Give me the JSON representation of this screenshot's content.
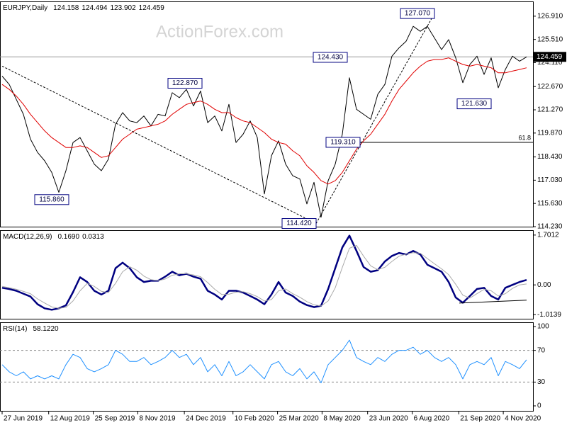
{
  "watermark": "ActionForex.com",
  "chart_data": [
    {
      "type": "line",
      "title": "EURJPY,Daily",
      "readout": [
        124.158,
        124.494,
        123.902,
        124.459
      ],
      "x": [
        0,
        1,
        2,
        3,
        4,
        5,
        6,
        7,
        8,
        9,
        10,
        11,
        12,
        13,
        14,
        15,
        16,
        17,
        18,
        19,
        20,
        21,
        22,
        23,
        24,
        25,
        26,
        27,
        28,
        29,
        30,
        31,
        32,
        33,
        34,
        35,
        36,
        37,
        38,
        39,
        40,
        41,
        42,
        43,
        44,
        45,
        46,
        47,
        48,
        49,
        50,
        51,
        52,
        53,
        54,
        55,
        56,
        57,
        58,
        59,
        60,
        61,
        62,
        63,
        64,
        65,
        66,
        67,
        68,
        69,
        70,
        71,
        72,
        73,
        74
      ],
      "xlim": [
        -0.3,
        74.9
      ],
      "ylim": [
        114.23,
        127.8
      ],
      "yticks": [
        {
          "value": 126.91,
          "label": "126.910"
        },
        {
          "value": 125.51,
          "label": "125.510"
        },
        {
          "value": 124.11,
          "label": "124.110"
        },
        {
          "value": 122.67,
          "label": "122.670"
        },
        {
          "value": 121.27,
          "label": "121.270"
        },
        {
          "value": 119.87,
          "label": "119.870"
        },
        {
          "value": 118.43,
          "label": "118.430"
        },
        {
          "value": 117.03,
          "label": "117.030"
        },
        {
          "value": 115.63,
          "label": "115.630"
        },
        {
          "value": 114.23,
          "label": "114.230"
        }
      ],
      "series": [
        {
          "color": "#000000",
          "width": 1,
          "values": [
            123.3,
            122.8,
            121.9,
            121.0,
            119.5,
            118.7,
            118.2,
            117.5,
            116.3,
            117.6,
            119.3,
            119.6,
            118.8,
            118.0,
            117.6,
            118.3,
            120.4,
            121.1,
            120.6,
            120.5,
            120.9,
            120.3,
            121.0,
            120.9,
            122.3,
            122.0,
            122.5,
            121.5,
            122.4,
            120.5,
            120.9,
            120.0,
            121.6,
            119.3,
            119.8,
            120.6,
            119.6,
            116.2,
            118.5,
            119.4,
            118.0,
            117.3,
            117.1,
            115.6,
            116.9,
            114.8,
            117.0,
            118.0,
            119.8,
            123.2,
            121.3,
            121.0,
            120.7,
            122.2,
            122.8,
            124.5,
            125.0,
            125.4,
            126.3,
            126.0,
            126.3,
            125.6,
            124.9,
            125.5,
            124.4,
            122.9,
            124.0,
            124.5,
            123.4,
            124.4,
            122.6,
            123.7,
            124.5,
            124.2,
            124.459
          ]
        },
        {
          "color": "#e00000",
          "width": 1,
          "values": [
            122.8,
            122.5,
            122.1,
            121.6,
            121.0,
            120.5,
            120.0,
            119.6,
            119.3,
            119.0,
            119.0,
            119.1,
            119.0,
            118.7,
            118.4,
            118.5,
            119.0,
            119.5,
            119.8,
            120.1,
            120.2,
            120.3,
            120.4,
            120.6,
            121.0,
            121.3,
            121.6,
            121.7,
            121.8,
            121.6,
            121.3,
            121.1,
            121.1,
            120.8,
            120.6,
            120.5,
            120.2,
            119.9,
            119.5,
            119.3,
            119.2,
            118.8,
            118.5,
            117.9,
            117.5,
            117.0,
            116.8,
            117.0,
            117.5,
            118.2,
            118.9,
            119.4,
            119.8,
            120.4,
            121.0,
            121.8,
            122.5,
            123.0,
            123.5,
            123.9,
            124.2,
            124.3,
            124.3,
            124.4,
            124.2,
            124.0,
            123.9,
            124.0,
            123.9,
            123.8,
            123.5,
            123.5,
            123.6,
            123.7,
            123.8
          ]
        }
      ],
      "last_price": 124.459,
      "annotations": [
        {
          "x": 61,
          "value": 127.07,
          "label": "127.070"
        },
        {
          "x": 48.7,
          "value": 124.43,
          "label": "124.430"
        },
        {
          "x": 28.2,
          "value": 122.87,
          "label": "122.870"
        },
        {
          "x": 9.4,
          "value": 115.86,
          "label": "115.860"
        },
        {
          "x": 44.3,
          "value": 114.42,
          "label": "114.420"
        },
        {
          "x": 69,
          "value": 121.63,
          "label": "121.630"
        },
        {
          "x": 50.5,
          "value": 119.31,
          "label": "119.310"
        }
      ],
      "fib_level": {
        "x_start": 50.5,
        "value": 119.31,
        "ratio": 61.8
      },
      "trendlines": [
        [
          [
            0,
            123.9
          ],
          [
            44.3,
            114.42
          ]
        ],
        [
          [
            44.3,
            114.42
          ],
          [
            61,
            127.07
          ]
        ]
      ]
    },
    {
      "type": "line",
      "title": "MACD(12,26,9)",
      "readout": [
        {
          "value": 0.169,
          "label": "0.1690"
        },
        0.0313
      ],
      "x": [
        0,
        1,
        2,
        3,
        4,
        5,
        6,
        7,
        8,
        9,
        10,
        11,
        12,
        13,
        14,
        15,
        16,
        17,
        18,
        19,
        20,
        21,
        22,
        23,
        24,
        25,
        26,
        27,
        28,
        29,
        30,
        31,
        32,
        33,
        34,
        35,
        36,
        37,
        38,
        39,
        40,
        41,
        42,
        43,
        44,
        45,
        46,
        47,
        48,
        49,
        50,
        51,
        52,
        53,
        54,
        55,
        56,
        57,
        58,
        59,
        60,
        61,
        62,
        63,
        64,
        65,
        66,
        67,
        68,
        69,
        70,
        71,
        72,
        73,
        74
      ],
      "xlim": [
        -0.3,
        74.9
      ],
      "ylim": [
        -1.156,
        1.867
      ],
      "yticks": [
        1.7012,
        {
          "value": 0,
          "label": "0.00"
        },
        -1.0139
      ],
      "series": [
        {
          "color": "#000080",
          "width": 2.5,
          "values": [
            -0.1,
            -0.14,
            -0.2,
            -0.3,
            -0.4,
            -0.66,
            -0.8,
            -0.85,
            -0.8,
            -0.7,
            -0.25,
            0.26,
            0.1,
            -0.2,
            -0.33,
            -0.2,
            0.57,
            0.76,
            0.57,
            0.26,
            0.1,
            0.14,
            0.14,
            0.28,
            0.45,
            0.33,
            0.38,
            0.28,
            0.21,
            -0.2,
            -0.33,
            -0.5,
            -0.2,
            -0.2,
            -0.26,
            -0.38,
            -0.5,
            -0.66,
            -0.33,
            0.1,
            -0.26,
            -0.38,
            -0.57,
            -0.69,
            -0.76,
            -0.71,
            -0.14,
            0.57,
            1.28,
            1.68,
            1.16,
            0.61,
            0.45,
            0.5,
            0.8,
            0.99,
            1.09,
            1.04,
            1.16,
            1.04,
            0.69,
            0.57,
            0.45,
            0.1,
            -0.43,
            -0.61,
            -0.38,
            -0.14,
            -0.1,
            -0.38,
            -0.5,
            -0.1,
            0,
            0.1,
            0.169
          ]
        },
        {
          "color": "#aaaaaa",
          "width": 1,
          "values": [
            -0.05,
            -0.1,
            -0.15,
            -0.22,
            -0.3,
            -0.48,
            -0.62,
            -0.75,
            -0.8,
            -0.77,
            -0.55,
            -0.2,
            0.05,
            -0.05,
            -0.22,
            -0.26,
            0.05,
            0.45,
            0.62,
            0.5,
            0.3,
            0.18,
            0.14,
            0.2,
            0.33,
            0.38,
            0.38,
            0.34,
            0.28,
            0.08,
            -0.15,
            -0.33,
            -0.32,
            -0.25,
            -0.23,
            -0.3,
            -0.4,
            -0.55,
            -0.5,
            -0.2,
            -0.14,
            -0.3,
            -0.42,
            -0.57,
            -0.68,
            -0.72,
            -0.55,
            -0.1,
            0.6,
            1.25,
            1.35,
            0.98,
            0.65,
            0.52,
            0.6,
            0.8,
            0.98,
            1.05,
            1.1,
            1.08,
            0.9,
            0.72,
            0.55,
            0.35,
            0.02,
            -0.35,
            -0.45,
            -0.3,
            -0.15,
            -0.2,
            -0.38,
            -0.3,
            -0.12,
            0.0,
            0.0313
          ]
        }
      ],
      "trendlines": [
        [
          [
            64.5,
            -0.62
          ],
          [
            74,
            -0.52
          ]
        ]
      ]
    },
    {
      "type": "line",
      "title": "RSI(14)",
      "readout": [
        {
          "value": 58.122,
          "label": "58.1220"
        }
      ],
      "x": [
        0,
        1,
        2,
        3,
        4,
        5,
        6,
        7,
        8,
        9,
        10,
        11,
        12,
        13,
        14,
        15,
        16,
        17,
        18,
        19,
        20,
        21,
        22,
        23,
        24,
        25,
        26,
        27,
        28,
        29,
        30,
        31,
        32,
        33,
        34,
        35,
        36,
        37,
        38,
        39,
        40,
        41,
        42,
        43,
        44,
        45,
        46,
        47,
        48,
        49,
        50,
        51,
        52,
        53,
        54,
        55,
        56,
        57,
        58,
        59,
        60,
        61,
        62,
        63,
        64,
        65,
        66,
        67,
        68,
        69,
        70,
        71,
        72,
        73,
        74
      ],
      "xlim": [
        -0.3,
        74.9
      ],
      "ylim": [
        -6.25,
        105.4
      ],
      "yticks": [
        100,
        70,
        30,
        0
      ],
      "levels": [
        70,
        30
      ],
      "series": [
        {
          "color": "#1e90ff",
          "width": 1,
          "values": [
            52,
            43,
            38,
            43,
            34,
            38,
            34,
            38,
            34,
            52,
            65,
            61,
            47,
            43,
            47,
            52,
            70,
            65,
            56,
            56,
            61,
            52,
            56,
            61,
            70,
            61,
            65,
            52,
            61,
            43,
            52,
            38,
            56,
            38,
            43,
            52,
            43,
            34,
            52,
            56,
            43,
            38,
            47,
            34,
            43,
            29,
            52,
            61,
            70,
            83,
            61,
            56,
            52,
            61,
            56,
            65,
            70,
            70,
            74,
            65,
            70,
            61,
            56,
            61,
            52,
            34,
            52,
            56,
            52,
            61,
            38,
            56,
            52,
            47,
            58.122
          ]
        }
      ],
      "xticks": [
        {
          "value": 0,
          "label": "27 Jun 2019"
        },
        {
          "value": 6.57,
          "label": "12 Aug 2019"
        },
        {
          "value": 12.86,
          "label": "25 Sep 2019"
        },
        {
          "value": 19.14,
          "label": "8 Nov 2019"
        },
        {
          "value": 25.71,
          "label": "24 Dec 2019"
        },
        {
          "value": 32.57,
          "label": "10 Feb 2020"
        },
        {
          "value": 38.86,
          "label": "25 Mar 2020"
        },
        {
          "value": 45.14,
          "label": "8 May 2020"
        },
        {
          "value": 51.57,
          "label": "23 Jun 2020"
        },
        {
          "value": 57.86,
          "label": "6 Aug 2020"
        },
        {
          "value": 64.43,
          "label": "21 Sep 2020"
        },
        {
          "value": 70.71,
          "label": "4 Nov 2020"
        }
      ]
    }
  ]
}
